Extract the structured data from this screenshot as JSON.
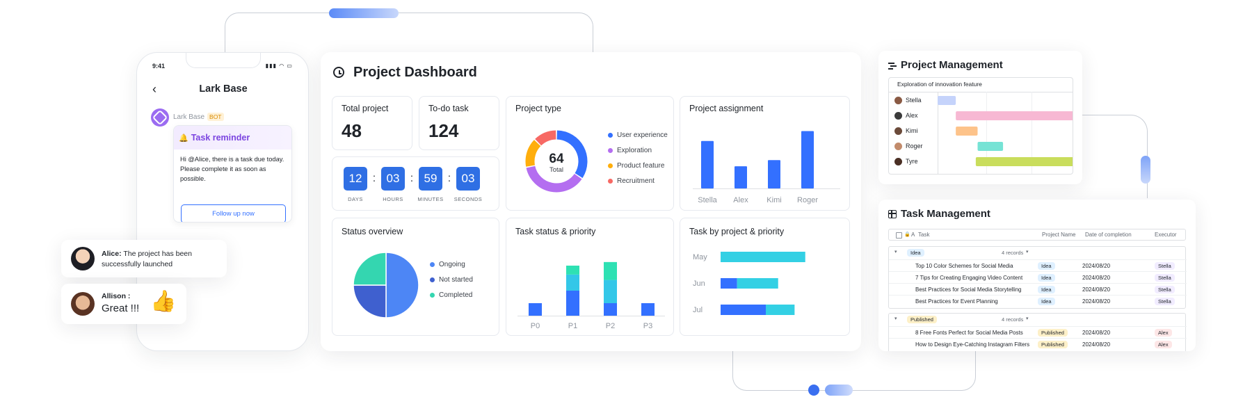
{
  "phone": {
    "time": "9:41",
    "title": "Lark Base",
    "bot_name": "Lark Base",
    "bot_badge": "BOT",
    "reminder_title": "Task reminder",
    "reminder_text": "Hi @Alice, there is a task due today. Please complete it as soon as possible.",
    "follow_up_button": "Follow up now"
  },
  "chats": [
    {
      "name": "Alice:",
      "text": "The project has been successfully launched"
    },
    {
      "name": "Allison :",
      "text": "Great !!!"
    }
  ],
  "dashboard": {
    "title": "Project Dashboard",
    "total_project_label": "Total project",
    "total_project_value": "48",
    "todo_label": "To-do task",
    "todo_value": "124",
    "countdown": [
      {
        "value": "12",
        "label": "DAYS"
      },
      {
        "value": "03",
        "label": "HOURS"
      },
      {
        "value": "59",
        "label": "MINUTES"
      },
      {
        "value": "03",
        "label": "SECONDS"
      }
    ],
    "project_type": {
      "title": "Project type",
      "center_value": "64",
      "center_label": "Total",
      "legend": [
        "User experience",
        "Exploration",
        "Product feature",
        "Recruitment"
      ]
    },
    "project_assignment": {
      "title": "Project assignment"
    },
    "status_overview": {
      "title": "Status overview",
      "legend": [
        "Ongoing",
        "Not started",
        "Completed"
      ]
    },
    "task_status": {
      "title": "Task status & priority"
    },
    "task_by_project": {
      "title": "Task by project & priority"
    }
  },
  "chart_data": [
    {
      "type": "pie",
      "title": "Project type",
      "categories": [
        "User experience",
        "Exploration",
        "Product feature",
        "Recruitment"
      ],
      "values": [
        22,
        24,
        10,
        8
      ],
      "colors": [
        "#3370ff",
        "#b46ef0",
        "#ffae0c",
        "#f76964"
      ]
    },
    {
      "type": "bar",
      "title": "Project assignment",
      "categories": [
        "Stella",
        "Alex",
        "Kimi",
        "Roger"
      ],
      "values": [
        62,
        29,
        37,
        75
      ],
      "ylim": [
        0,
        80
      ],
      "colors": [
        "#3370ff"
      ]
    },
    {
      "type": "pie",
      "title": "Status overview",
      "categories": [
        "Ongoing",
        "Not started",
        "Completed"
      ],
      "values": [
        50,
        25,
        25
      ],
      "colors": [
        "#4d86f5",
        "#3f60cf",
        "#34d6b0"
      ]
    },
    {
      "type": "bar",
      "title": "Task status & priority",
      "categories": [
        "P0",
        "P1",
        "P2",
        "P3"
      ],
      "series": [
        {
          "values": [
            14,
            28,
            14,
            14
          ],
          "color": "#3370ff"
        },
        {
          "values": [
            0,
            18,
            26,
            0
          ],
          "color": "#33c7e8"
        },
        {
          "values": [
            0,
            10,
            20,
            0
          ],
          "color": "#2ee1b3"
        }
      ],
      "ylim": [
        0,
        70
      ]
    },
    {
      "type": "bar",
      "title": "Task by project & priority",
      "orientation": "horizontal",
      "categories": [
        "May",
        "Jun",
        "Jul"
      ],
      "series": [
        {
          "values": [
            0,
            20,
            55
          ],
          "color": "#3370ff"
        },
        {
          "values": [
            103,
            50,
            35
          ],
          "color": "#33d0e4"
        }
      ],
      "xlim": [
        0,
        110
      ]
    },
    {
      "type": "bar",
      "title": "Exploration of innovation feature",
      "orientation": "gantt",
      "categories": [
        "Stella",
        "Alex",
        "Kimi",
        "Roger",
        "Tyre"
      ],
      "series": [
        {
          "name": "start",
          "values": [
            0,
            10,
            10,
            22,
            21
          ]
        },
        {
          "name": "end",
          "values": [
            10,
            75,
            22,
            36,
            75
          ]
        }
      ],
      "colors": [
        "#c5d3fb",
        "#f7b8d3",
        "#fdc38a",
        "#76e3d5",
        "#c9dd5c"
      ]
    }
  ],
  "project_management": {
    "title": "Project Management",
    "gantt_title": "Exploration of innovation feature",
    "people": [
      "Stella",
      "Alex",
      "Kimi",
      "Roger",
      "Tyre"
    ]
  },
  "task_management": {
    "title": "Task Management",
    "headers": {
      "task": "Task",
      "project": "Project Name",
      "date": "Date of completion",
      "executor": "Executor"
    },
    "groups": [
      {
        "label": "Idea",
        "records": "4 records",
        "rows": [
          {
            "task": "Top 10 Color Schemes for Social Media",
            "tag": "Idea",
            "date": "2024/08/20",
            "executor": "Stella"
          },
          {
            "task": "7 Tips for Creating Engaging Video Content",
            "tag": "Idea",
            "date": "2024/08/20",
            "executor": "Stella"
          },
          {
            "task": "Best Practices for Social Media Storytelling",
            "tag": "Idea",
            "date": "2024/08/20",
            "executor": "Stella"
          },
          {
            "task": "Best Practices for Event Planning",
            "tag": "Idea",
            "date": "2024/08/20",
            "executor": "Stella"
          }
        ]
      },
      {
        "label": "Published",
        "records": "4 records",
        "rows": [
          {
            "task": "8 Free Fonts Perfect for Social Media Posts",
            "tag": "Published",
            "date": "2024/08/20",
            "executor": "Alex"
          },
          {
            "task": "How to Design Eye-Catching Instagram Filters",
            "tag": "Published",
            "date": "2024/08/20",
            "executor": "Alex"
          }
        ]
      }
    ]
  },
  "colors": {
    "accent": "#3370ff",
    "card_bg": "#ffffff",
    "page_bg": "#ffffff"
  }
}
